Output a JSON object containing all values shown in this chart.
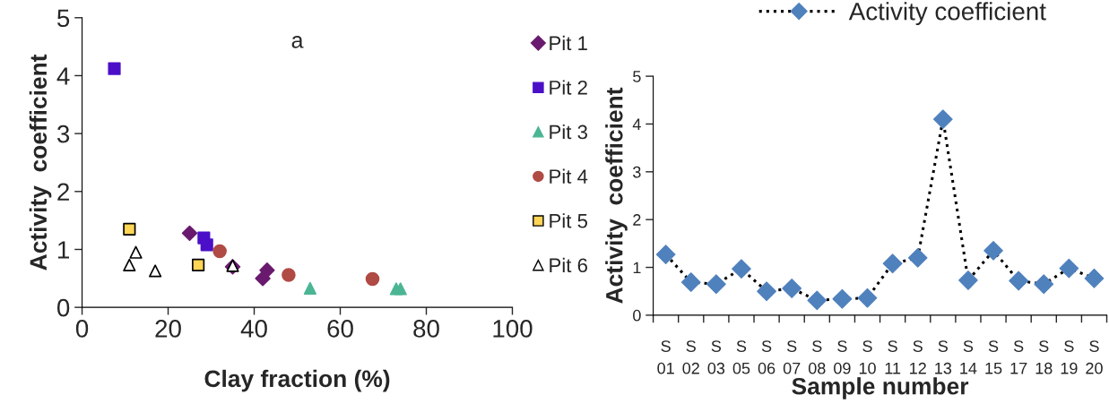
{
  "chart_data": [
    {
      "type": "scatter",
      "title": "a",
      "xlabel": "Clay fraction (%)",
      "ylabel": "Activity  coefficient",
      "xlim": [
        0,
        100
      ],
      "xticks": [
        0,
        20,
        40,
        60,
        80,
        100
      ],
      "ylim": [
        0,
        5
      ],
      "yticks": [
        0,
        1,
        2,
        3,
        4,
        5
      ],
      "grid": false,
      "legend": "right",
      "series": [
        {
          "name": "Pit 1",
          "color": "#6a1a6e",
          "marker": "diamond",
          "x": [
            25,
            35,
            42,
            43
          ],
          "values": [
            1.28,
            0.7,
            0.5,
            0.64
          ]
        },
        {
          "name": "Pit 2",
          "color": "#4b0fc8",
          "marker": "square",
          "x": [
            7.5,
            28.3,
            29
          ],
          "values": [
            4.12,
            1.2,
            1.08
          ]
        },
        {
          "name": "Pit 3",
          "color": "#4bb594",
          "marker": "triangle",
          "x": [
            53,
            73,
            74
          ],
          "values": [
            0.33,
            0.32,
            0.32
          ]
        },
        {
          "name": "Pit 4",
          "color": "#b04a44",
          "marker": "circle",
          "x": [
            32,
            48,
            67.5
          ],
          "values": [
            0.97,
            0.56,
            0.49
          ]
        },
        {
          "name": "Pit 5",
          "color": "#ffd555",
          "marker": "square",
          "x": [
            11,
            27
          ],
          "values": [
            1.35,
            0.73
          ]
        },
        {
          "name": "Pit 6",
          "color": "#ffffff",
          "marker": "triangle",
          "x": [
            11,
            12.5,
            17,
            35
          ],
          "values": [
            0.73,
            0.95,
            0.63,
            0.72
          ]
        }
      ]
    },
    {
      "type": "line",
      "xlabel": "Sample number",
      "ylabel": "Activity  coefficient",
      "ylim": [
        0,
        5
      ],
      "yticks": [
        0,
        1,
        2,
        3,
        4,
        5
      ],
      "grid": false,
      "legend": "top",
      "marker": "diamond",
      "line_style": "dotted",
      "categories": [
        "S\n01",
        "S\n02",
        "S\n03",
        "S\n05",
        "S\n06",
        "S\n07",
        "S\n08",
        "S\n09",
        "S\n10",
        "S\n11",
        "S\n12",
        "S\n13",
        "S\n14",
        "S\n15",
        "S\n17",
        "S\n18",
        "S\n19",
        "S\n20"
      ],
      "series": [
        {
          "name": "Activity coefficient",
          "color": "#4f81bd",
          "values": [
            1.27,
            0.69,
            0.65,
            0.97,
            0.5,
            0.56,
            0.31,
            0.34,
            0.36,
            1.08,
            1.2,
            4.1,
            0.73,
            1.35,
            0.72,
            0.65,
            0.98,
            0.77
          ]
        }
      ]
    }
  ]
}
